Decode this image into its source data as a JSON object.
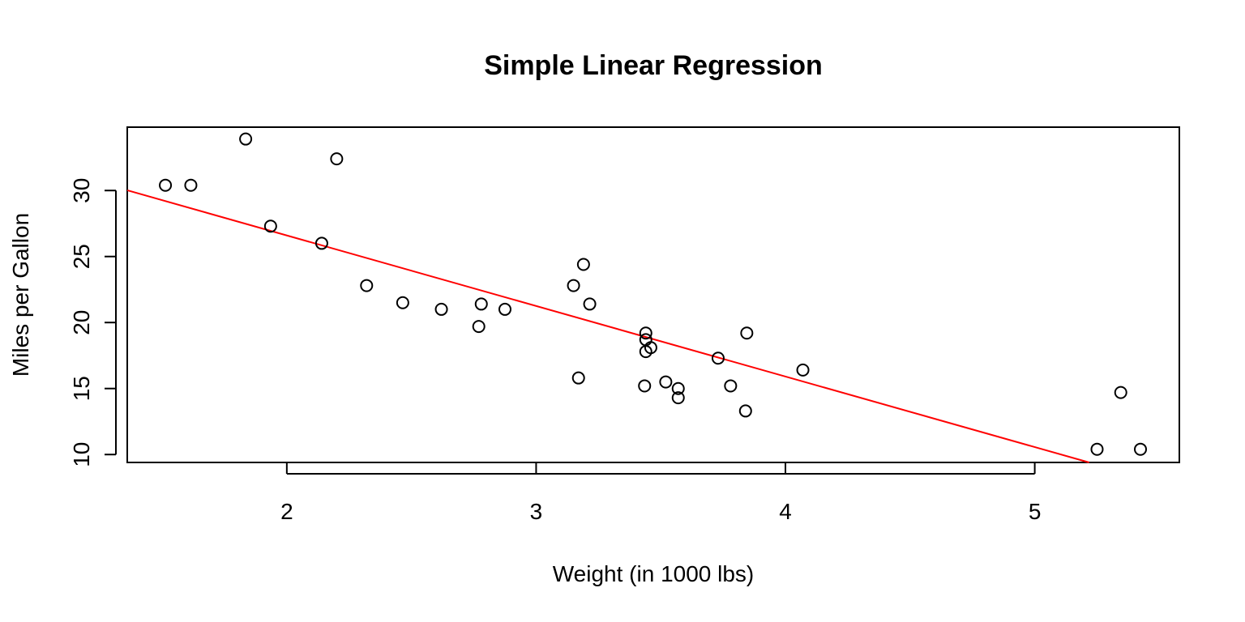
{
  "chart_data": {
    "type": "scatter",
    "title": "Simple Linear Regression",
    "xlabel": "Weight (in 1000 lbs)",
    "ylabel": "Miles per Gallon",
    "xlim": [
      1.36,
      5.58
    ],
    "ylim": [
      9.4,
      34.8
    ],
    "xticks": [
      2,
      3,
      4,
      5
    ],
    "yticks": [
      10,
      15,
      20,
      25,
      30
    ],
    "grid": false,
    "legend": "none",
    "colors": {
      "points": "#000000",
      "fit_line": "#ff0000",
      "frame": "#000000"
    },
    "points": [
      {
        "x": 2.62,
        "y": 21.0
      },
      {
        "x": 2.875,
        "y": 21.0
      },
      {
        "x": 2.32,
        "y": 22.8
      },
      {
        "x": 3.215,
        "y": 21.4
      },
      {
        "x": 3.44,
        "y": 18.7
      },
      {
        "x": 3.46,
        "y": 18.1
      },
      {
        "x": 3.57,
        "y": 14.3
      },
      {
        "x": 3.19,
        "y": 24.4
      },
      {
        "x": 3.15,
        "y": 22.8
      },
      {
        "x": 3.44,
        "y": 19.2
      },
      {
        "x": 3.44,
        "y": 17.8
      },
      {
        "x": 4.07,
        "y": 16.4
      },
      {
        "x": 3.73,
        "y": 17.3
      },
      {
        "x": 3.78,
        "y": 15.2
      },
      {
        "x": 5.25,
        "y": 10.4
      },
      {
        "x": 5.424,
        "y": 10.4
      },
      {
        "x": 5.345,
        "y": 14.7
      },
      {
        "x": 2.2,
        "y": 32.4
      },
      {
        "x": 1.615,
        "y": 30.4
      },
      {
        "x": 1.835,
        "y": 33.9
      },
      {
        "x": 2.465,
        "y": 21.5
      },
      {
        "x": 3.52,
        "y": 15.5
      },
      {
        "x": 3.435,
        "y": 15.2
      },
      {
        "x": 3.84,
        "y": 13.3
      },
      {
        "x": 3.845,
        "y": 19.2
      },
      {
        "x": 1.935,
        "y": 27.3
      },
      {
        "x": 2.14,
        "y": 26.0
      },
      {
        "x": 1.513,
        "y": 30.4
      },
      {
        "x": 3.17,
        "y": 15.8
      },
      {
        "x": 2.77,
        "y": 19.7
      },
      {
        "x": 3.57,
        "y": 15.0
      },
      {
        "x": 2.78,
        "y": 21.4
      }
    ],
    "regression_line": {
      "intercept": 37.285,
      "slope": -5.344
    }
  }
}
